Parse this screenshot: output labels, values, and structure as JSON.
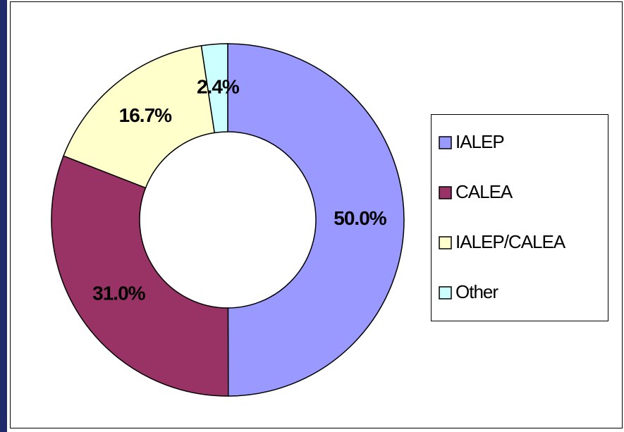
{
  "chart_data": {
    "type": "donut",
    "categories": [
      "IALEP",
      "CALEA",
      "IALEP/CALEA",
      "Other"
    ],
    "values": [
      50,
      31,
      16.7,
      2.4
    ],
    "value_labels": [
      "50.0%",
      "31.0%",
      "16.7%",
      "2.4%"
    ],
    "colors": [
      "#9999ff",
      "#993366",
      "#ffffcc",
      "#ccffff"
    ],
    "legend": "right"
  }
}
